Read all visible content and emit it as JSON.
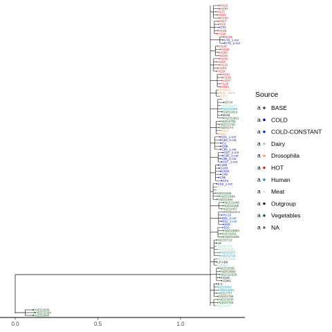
{
  "chart_data": {
    "type": "tree",
    "x_axis": {
      "ticks": [
        "0.0",
        "0.5",
        "1.0"
      ],
      "tick_values": [
        0,
        0.5,
        1.0
      ],
      "range": [
        -0.05,
        1.39
      ]
    },
    "legend": {
      "title": "Source",
      "position": "right",
      "entries": [
        {
          "label": "BASE",
          "color": "#444444"
        },
        {
          "label": "COLD",
          "color": "#0000cc"
        },
        {
          "label": "COLD-CONSTANT",
          "color": "#0033ff"
        },
        {
          "label": "Dairy",
          "color": "#9ad7c0"
        },
        {
          "label": "Drosophila",
          "color": "#f4a460"
        },
        {
          "label": "HOT",
          "color": "#e41a1c"
        },
        {
          "label": "Human",
          "color": "#1f9bb3"
        },
        {
          "label": "Meat",
          "color": "#e8e0e8"
        },
        {
          "label": "Outgroup",
          "color": "#222222"
        },
        {
          "label": "Vegetables",
          "color": "#1b5e20"
        },
        {
          "label": "NA",
          "color": "#666666"
        }
      ]
    },
    "main_clade_depth": 1.18,
    "outgroup_tips": [
      {
        "label": "NIZO1839",
        "source": "Vegetables"
      },
      {
        "label": "NIZO2264",
        "source": "Vegetables"
      },
      {
        "label": "NIZO1840",
        "source": "Vegetables"
      }
    ],
    "clade_tips": [
      {
        "label": "H115",
        "source": "HOT"
      },
      {
        "label": "H197",
        "source": "HOT"
      },
      {
        "label": "H170",
        "source": "HOT"
      },
      {
        "label": "H125",
        "source": "HOT"
      },
      {
        "label": "H199",
        "source": "HOT"
      },
      {
        "label": "H117",
        "source": "HOT"
      },
      {
        "label": "H16",
        "source": "HOT"
      },
      {
        "label": "CT1",
        "source": "COLD"
      },
      {
        "label": "H139",
        "source": "HOT"
      },
      {
        "label": "H136",
        "source": "HOT"
      },
      {
        "label": "H126",
        "source": "HOT"
      },
      {
        "label": "C79_1-cor",
        "source": "COLD"
      },
      {
        "label": "C71_1-cor",
        "source": "COLD"
      },
      {
        "label": "H145",
        "source": "HOT"
      },
      {
        "label": "H138",
        "source": "HOT"
      },
      {
        "label": "H188",
        "source": "HOT"
      },
      {
        "label": "H148",
        "source": "HOT"
      },
      {
        "label": "H150",
        "source": "HOT"
      },
      {
        "label": "H163",
        "source": "HOT"
      },
      {
        "label": "H122",
        "source": "HOT"
      },
      {
        "label": "H193",
        "source": "HOT"
      },
      {
        "label": "H119",
        "source": "HOT"
      },
      {
        "label": "H123",
        "source": "HOT"
      },
      {
        "label": "H196",
        "source": "HOT"
      },
      {
        "label": "H157",
        "source": "HOT"
      },
      {
        "label": "H124",
        "source": "HOT"
      },
      {
        "label": "H205",
        "source": "HOT"
      },
      {
        "label": "DSM16",
        "source": "Drosophila"
      },
      {
        "label": "WJL_10P1",
        "source": "Drosophila"
      },
      {
        "label": "CP1",
        "source": "Drosophila"
      },
      {
        "label": "M01",
        "source": "Meat"
      },
      {
        "label": "ST-III",
        "source": "Outgroup"
      },
      {
        "label": "NIZO2263",
        "source": "Dairy"
      },
      {
        "label": "NIZO3400",
        "source": "Human"
      },
      {
        "label": "NIZO2814",
        "source": "Vegetables"
      },
      {
        "label": "BGM",
        "source": "Outgroup"
      },
      {
        "label": "NIZO2801",
        "source": "Vegetables"
      },
      {
        "label": "NIZO2755",
        "source": "Vegetables"
      },
      {
        "label": "NIZO2766",
        "source": "Vegetables"
      },
      {
        "label": "NIZO274",
        "source": "Vegetables"
      },
      {
        "label": "NC8",
        "source": "Drosophila"
      },
      {
        "label": "WJL",
        "source": "Drosophila"
      },
      {
        "label": "C81_1-cor",
        "source": "COLD"
      },
      {
        "label": "C84_1-cor",
        "source": "COLD"
      },
      {
        "label": "C2",
        "source": "COLD"
      },
      {
        "label": "C98",
        "source": "COLD"
      },
      {
        "label": "C96_1-cor",
        "source": "COLD"
      },
      {
        "label": "C67_1-cor",
        "source": "COLD"
      },
      {
        "label": "C95_1-cor",
        "source": "COLD"
      },
      {
        "label": "C88_1-cor",
        "source": "COLD"
      },
      {
        "label": "C87_1-cor",
        "source": "COLD"
      },
      {
        "label": "C100",
        "source": "COLD"
      },
      {
        "label": "C103",
        "source": "COLD"
      },
      {
        "label": "C104",
        "source": "COLD"
      },
      {
        "label": "C49",
        "source": "COLD"
      },
      {
        "label": "C46",
        "source": "COLD"
      },
      {
        "label": "C74",
        "source": "COLD"
      },
      {
        "label": "C69_1-cor",
        "source": "COLD"
      },
      {
        "label": "NIZO2256",
        "source": "Meat"
      },
      {
        "label": "HO-1",
        "source": "Meat"
      },
      {
        "label": "NIZO2259",
        "source": "Vegetables"
      },
      {
        "label": "NIZO2484",
        "source": "Vegetables"
      },
      {
        "label": "NIZO2494",
        "source": "Vegetables"
      },
      {
        "label": "NIZO2485",
        "source": "Vegetables"
      },
      {
        "label": "NIZO2258",
        "source": "Vegetables"
      },
      {
        "label": "NIZO2457",
        "source": "Vegetables"
      },
      {
        "label": "Reference",
        "source": "BASE"
      },
      {
        "label": "P8-10",
        "source": "COLD-CONSTANT"
      },
      {
        "label": "B95_2-cor",
        "source": "COLD-CONSTANT"
      },
      {
        "label": "B92_2-cor",
        "source": "COLD-CONSTANT"
      },
      {
        "label": "B46",
        "source": "COLD-CONSTANT"
      },
      {
        "label": "B26",
        "source": "COLD-CONSTANT"
      },
      {
        "label": "NIZO3893",
        "source": "Vegetables"
      },
      {
        "label": "NIZO2831",
        "source": "Vegetables"
      },
      {
        "label": "NIZO1838",
        "source": "Vegetables"
      },
      {
        "label": "NIZO0713",
        "source": "Vegetables"
      },
      {
        "label": "16",
        "source": "Outgroup"
      },
      {
        "label": "NIZO2260",
        "source": "Dairy"
      },
      {
        "label": "NIZO2262",
        "source": "Dairy"
      },
      {
        "label": "NIZO2257",
        "source": "Human"
      },
      {
        "label": "NIZO2726",
        "source": "Human"
      },
      {
        "label": "NIZO2260b",
        "source": "Dairy"
      },
      {
        "label": "LP.AB8",
        "source": "Outgroup"
      },
      {
        "label": "LZ206",
        "source": "Dairy"
      },
      {
        "label": "NIZO2830",
        "source": "Vegetables"
      },
      {
        "label": "NIZO2853",
        "source": "Vegetables"
      },
      {
        "label": "NIZO2262b",
        "source": "Vegetables"
      },
      {
        "label": "ZJ316",
        "source": "Outgroup"
      },
      {
        "label": "JDM1",
        "source": "Outgroup"
      },
      {
        "label": "5-2",
        "source": "Outgroup"
      },
      {
        "label": "NIZO3892",
        "source": "Human"
      },
      {
        "label": "NIZO3893",
        "source": "Human"
      },
      {
        "label": "NIZO2757",
        "source": "Vegetables"
      },
      {
        "label": "NIZO2766",
        "source": "Vegetables"
      },
      {
        "label": "NIZO1836",
        "source": "Vegetables"
      },
      {
        "label": "NIZO2755",
        "source": "Vegetables"
      },
      {
        "label": "NIZO1837",
        "source": "Dairy"
      }
    ]
  }
}
